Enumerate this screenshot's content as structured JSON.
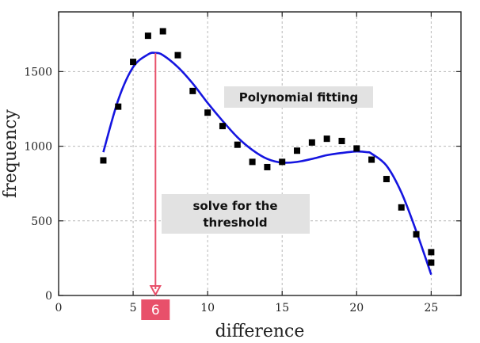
{
  "chart_data": {
    "type": "scatter",
    "xlabel": "difference",
    "ylabel": "frequency",
    "xlim": [
      0,
      27
    ],
    "ylim": [
      0,
      1900
    ],
    "x_ticks": [
      0,
      5,
      10,
      15,
      20,
      25
    ],
    "y_ticks": [
      0,
      500,
      1000,
      1500
    ],
    "grid": true,
    "points": [
      {
        "x": 3,
        "y": 905
      },
      {
        "x": 4,
        "y": 1265
      },
      {
        "x": 5,
        "y": 1565
      },
      {
        "x": 6,
        "y": 1740
      },
      {
        "x": 7,
        "y": 1770
      },
      {
        "x": 8,
        "y": 1610
      },
      {
        "x": 9,
        "y": 1370
      },
      {
        "x": 10,
        "y": 1225
      },
      {
        "x": 11,
        "y": 1135
      },
      {
        "x": 12,
        "y": 1010
      },
      {
        "x": 13,
        "y": 895
      },
      {
        "x": 14,
        "y": 860
      },
      {
        "x": 15,
        "y": 895
      },
      {
        "x": 16,
        "y": 970
      },
      {
        "x": 17,
        "y": 1025
      },
      {
        "x": 18,
        "y": 1050
      },
      {
        "x": 19,
        "y": 1035
      },
      {
        "x": 20,
        "y": 985
      },
      {
        "x": 21,
        "y": 910
      },
      {
        "x": 22,
        "y": 780
      },
      {
        "x": 23,
        "y": 590
      },
      {
        "x": 24,
        "y": 410
      },
      {
        "x": 25,
        "y": 290
      },
      {
        "x": 25,
        "y": 220
      }
    ],
    "fit_curve": {
      "color": "#1515e0",
      "x": [
        3,
        4,
        5,
        6,
        6.5,
        7,
        8,
        9,
        10,
        11,
        12,
        13,
        14,
        15,
        16,
        17,
        18,
        19,
        20,
        20.7,
        21,
        22,
        23,
        24,
        25
      ],
      "y": [
        960,
        1310,
        1530,
        1615,
        1625,
        1610,
        1530,
        1420,
        1290,
        1170,
        1060,
        975,
        915,
        890,
        895,
        915,
        940,
        955,
        965,
        960,
        950,
        870,
        690,
        430,
        140
      ]
    },
    "annotations": {
      "fit_label": "Polynomial fitting",
      "threshold_label_line1": "solve for the",
      "threshold_label_line2": "threshold",
      "threshold_x": 6.5,
      "threshold_marker": "6"
    },
    "colors": {
      "points": "#000000",
      "arrow": "#e8506a",
      "marker_bg": "#e8506a",
      "label_bg": "#e2e2e2"
    }
  }
}
